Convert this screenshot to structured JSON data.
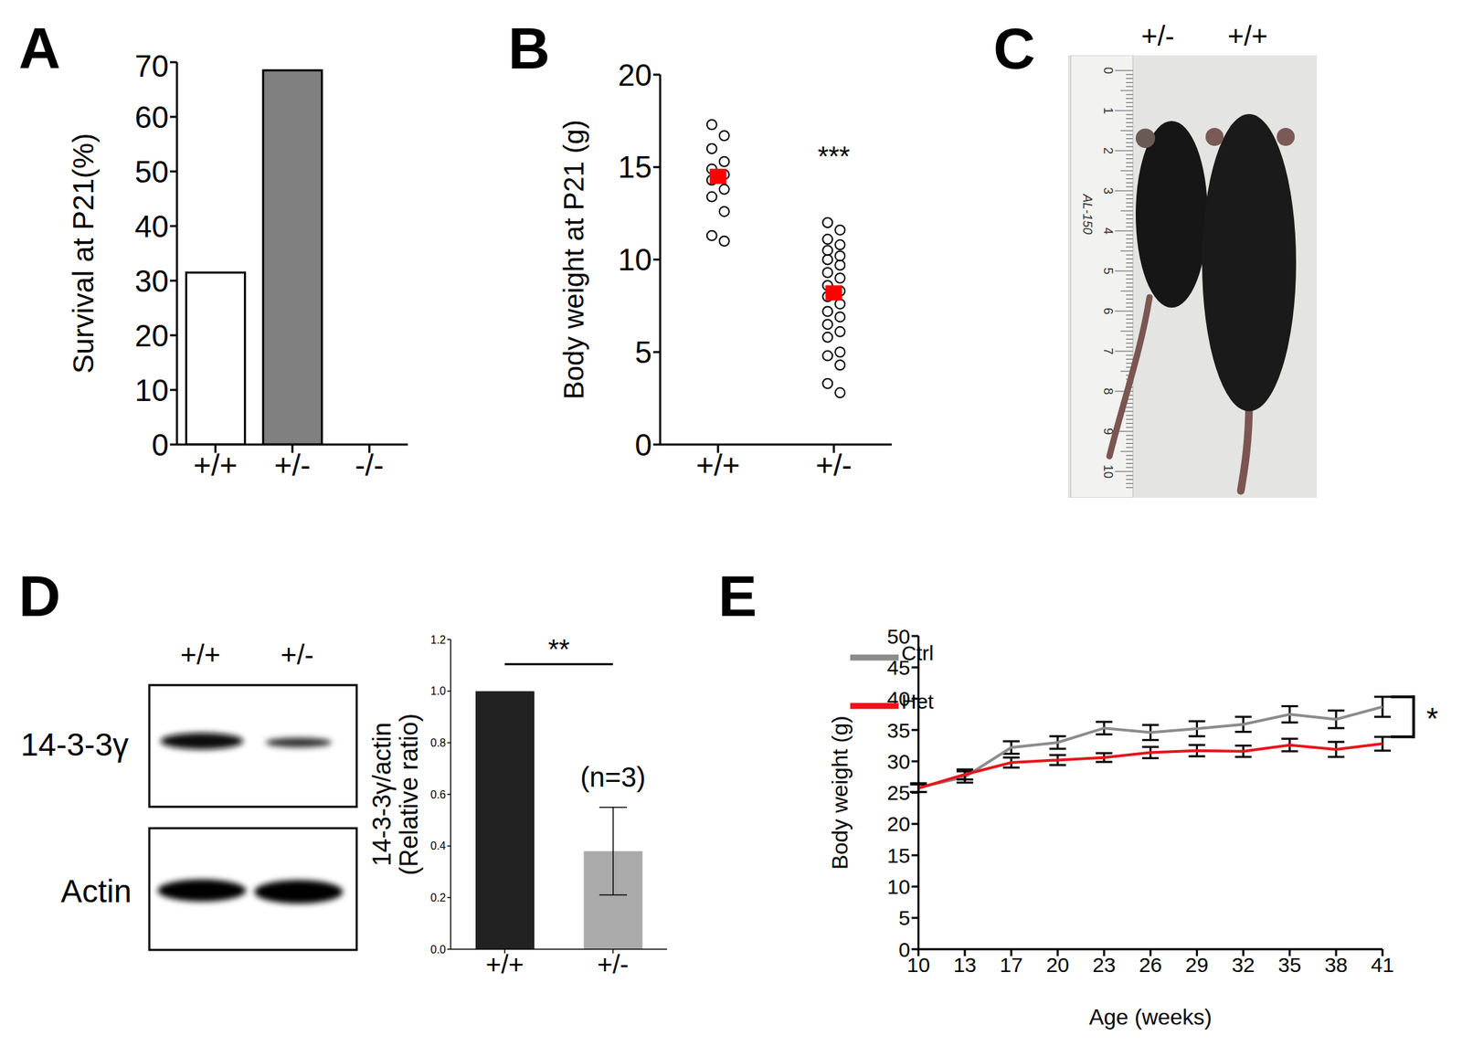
{
  "chart_data": [
    {
      "title": "A",
      "type": "bar",
      "categories": [
        "+/+",
        "+/-",
        "-/-"
      ],
      "values": [
        31.5,
        68.5,
        0
      ],
      "colors": [
        "#ffffff",
        "#808080",
        "#ffffff"
      ],
      "y_label": "Survival at P21(%)",
      "ylim": [
        0,
        70
      ],
      "yticks": [
        0,
        10,
        20,
        30,
        40,
        50,
        60,
        70
      ]
    },
    {
      "title": "B",
      "type": "scatter",
      "categories": [
        "+/+",
        "+/-"
      ],
      "points": [
        [
          17.3,
          16.7,
          16.0,
          15.3,
          14.9,
          14.6,
          14.3,
          13.8,
          13.4,
          12.6,
          11.3,
          11.0
        ],
        [
          12.0,
          11.6,
          11.1,
          10.8,
          10.5,
          10.2,
          10.0,
          9.7,
          9.3,
          9.0,
          8.6,
          8.3,
          8.0,
          7.6,
          7.2,
          6.9,
          6.5,
          6.1,
          5.8,
          5.0,
          4.8,
          4.3,
          3.3,
          2.8
        ]
      ],
      "means": [
        14.5,
        8.2
      ],
      "marker": "circle",
      "mean_color": "#ff0000",
      "y_label": "Body weight at P21 (g)",
      "ylim": [
        0,
        20
      ],
      "yticks": [
        0,
        5,
        10,
        15,
        20
      ],
      "annotations": [
        {
          "text": "***",
          "category": "+/-"
        }
      ]
    },
    {
      "title": "D",
      "type": "bar",
      "categories": [
        "+/+",
        "+/-"
      ],
      "values": [
        1.0,
        0.38
      ],
      "errors": [
        0,
        0.17
      ],
      "colors": [
        "#222222",
        "#aaaaaa"
      ],
      "y_label": [
        "14-3-3γ/actin",
        "(Relative ratio)"
      ],
      "ylim": [
        0,
        1.2
      ],
      "yticks": [
        {
          "value": 0,
          "label": "0.0"
        },
        0.2,
        0.4,
        0.6,
        0.8,
        {
          "value": 1,
          "label": "1.0"
        },
        1.2
      ],
      "annotations": [
        {
          "text": "**",
          "categories": [
            "+/+",
            "+/-"
          ]
        },
        {
          "text": "(n=3)",
          "category": "+/-"
        }
      ]
    },
    {
      "title": "E",
      "type": "line",
      "categories": [
        "10",
        "13",
        "17",
        "20",
        "23",
        "26",
        "29",
        "32",
        "35",
        "38",
        "41"
      ],
      "x_label": "Age (weeks)",
      "y_label": "Body weight (g)",
      "ylim": [
        0,
        50
      ],
      "yticks": [
        0,
        5,
        10,
        15,
        20,
        25,
        30,
        35,
        40,
        45,
        50
      ],
      "legend": "top-left",
      "series": [
        {
          "name": "Ctrl",
          "color": "#8c8c8c",
          "values": [
            25.8,
            27.5,
            32.2,
            33.0,
            35.3,
            34.6,
            35.2,
            35.9,
            37.5,
            36.7,
            38.7
          ],
          "errors": [
            0.7,
            0.9,
            1.0,
            1.0,
            1.0,
            1.2,
            1.2,
            1.2,
            1.3,
            1.4,
            1.6
          ]
        },
        {
          "name": "Het",
          "color": "#e8141b",
          "values": [
            25.7,
            27.9,
            29.8,
            30.2,
            30.6,
            31.4,
            31.7,
            31.6,
            32.6,
            31.9,
            32.8
          ],
          "errors": [
            0.6,
            0.8,
            0.8,
            0.8,
            0.7,
            0.9,
            0.9,
            0.9,
            1.0,
            1.2,
            1.1
          ]
        }
      ],
      "annotations": [
        {
          "text": "*",
          "series": [
            "Ctrl",
            "Het"
          ]
        }
      ]
    }
  ],
  "photo": {
    "title": "C",
    "labels": [
      "+/-",
      "+/+"
    ],
    "ruler_labels": [
      "0",
      "1",
      "2",
      "3",
      "4",
      "5",
      "6",
      "7",
      "8",
      "9",
      "10"
    ],
    "ruler_brand": "AL-150"
  },
  "blot": {
    "lanes": [
      "+/+",
      "+/-"
    ],
    "rows": [
      "14-3-3γ",
      "Actin"
    ]
  }
}
